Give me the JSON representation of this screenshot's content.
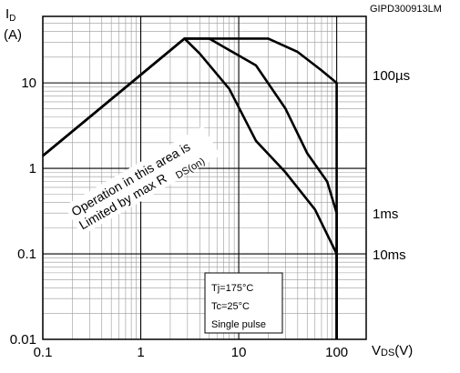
{
  "chart_data": {
    "type": "line",
    "x_scale": "log",
    "y_scale": "log",
    "xlim": [
      0.1,
      200
    ],
    "ylim": [
      0.01,
      60
    ],
    "grid": true,
    "figure_tag": "GIPD300913LM",
    "ylabel": {
      "main": "I",
      "sub": "D",
      "unit": "(A)"
    },
    "xlabel": {
      "main": "V",
      "sub": "DS",
      "unit": "(V)"
    },
    "x_ticks": [
      {
        "value": 0.1,
        "label": "0.1"
      },
      {
        "value": 1,
        "label": "1"
      },
      {
        "value": 10,
        "label": "10"
      },
      {
        "value": 100,
        "label": "100"
      }
    ],
    "y_ticks": [
      {
        "value": 10,
        "label": "10"
      },
      {
        "value": 1,
        "label": "1"
      },
      {
        "value": 0.1,
        "label": "0.1"
      },
      {
        "value": 0.01,
        "label": "0.01"
      }
    ],
    "series": [
      {
        "name": "100µs",
        "label_y": 12.5,
        "points": [
          [
            0.1,
            1.4
          ],
          [
            2.8,
            33
          ],
          [
            20,
            33
          ],
          [
            40,
            23
          ],
          [
            70,
            14
          ],
          [
            100,
            10
          ],
          [
            100,
            0.01
          ]
        ]
      },
      {
        "name": "1ms",
        "label_y": 0.3,
        "points": [
          [
            0.1,
            1.4
          ],
          [
            2.8,
            33
          ],
          [
            5,
            33
          ],
          [
            15,
            16
          ],
          [
            30,
            5
          ],
          [
            50,
            1.5
          ],
          [
            80,
            0.7
          ],
          [
            100,
            0.3
          ],
          [
            100,
            0.01
          ]
        ]
      },
      {
        "name": "10ms",
        "label_y": 0.1,
        "points": [
          [
            0.1,
            1.4
          ],
          [
            2.8,
            33
          ],
          [
            4,
            22
          ],
          [
            8,
            8.5
          ],
          [
            15,
            2.1
          ],
          [
            30,
            0.9
          ],
          [
            60,
            0.33
          ],
          [
            100,
            0.1
          ],
          [
            100,
            0.01
          ]
        ]
      }
    ],
    "annotation": {
      "line1": "Operation in this area is",
      "line2": "Limited by max R",
      "sub": "DS(on)"
    },
    "conditions": [
      "Tj=175°C",
      "Tc=25°C",
      "Single pulse"
    ]
  }
}
